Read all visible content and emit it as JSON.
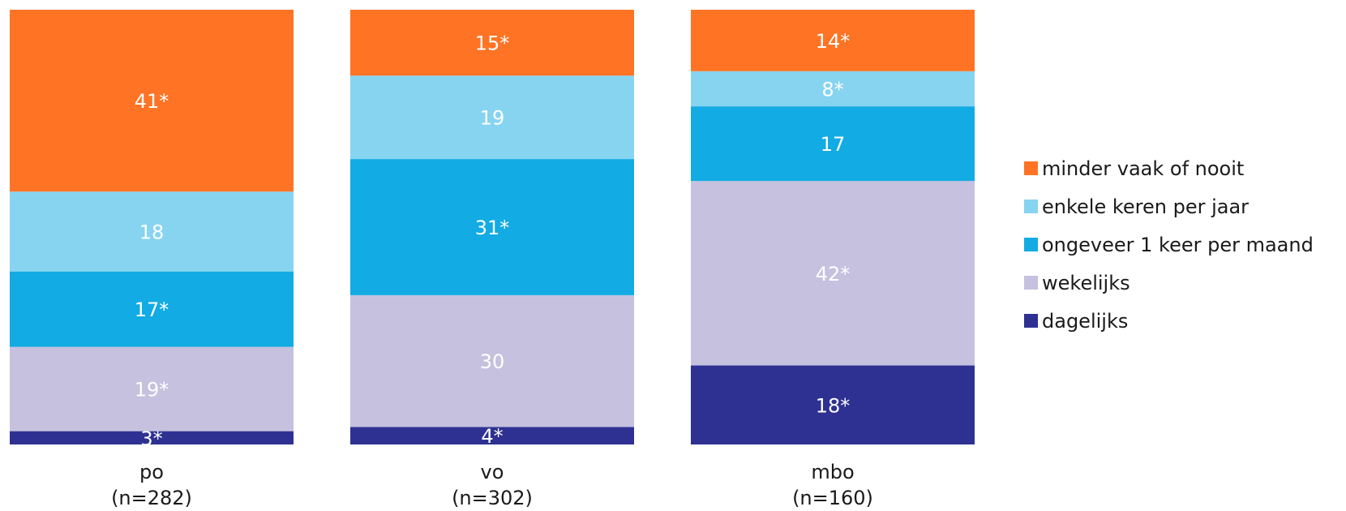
{
  "chart_data": {
    "type": "bar",
    "stacked": true,
    "normalized": true,
    "categories": [
      "po",
      "vo",
      "mbo"
    ],
    "category_notes": [
      "(n=282)",
      "(n=302)",
      "(n=160)"
    ],
    "series": [
      {
        "name": "dagelijks",
        "color": "#2E3192",
        "values": [
          3,
          4,
          18
        ],
        "labels": [
          "3*",
          "4*",
          "18*"
        ]
      },
      {
        "name": "wekelijks",
        "color": "#C5C1DF",
        "values": [
          19,
          30,
          42
        ],
        "labels": [
          "19*",
          "30",
          "42*"
        ]
      },
      {
        "name": "ongeveer 1 keer per maand",
        "color": "#13ABE3",
        "values": [
          17,
          31,
          17
        ],
        "labels": [
          "17*",
          "31*",
          "17"
        ]
      },
      {
        "name": "enkele keren per jaar",
        "color": "#87D4F0",
        "values": [
          18,
          19,
          8
        ],
        "labels": [
          "18",
          "19",
          "8*"
        ]
      },
      {
        "name": "minder vaak of nooit",
        "color": "#FF7324",
        "values": [
          41,
          15,
          14
        ],
        "labels": [
          "41*",
          "15*",
          "14*"
        ]
      }
    ],
    "legend_order": [
      "minder vaak of nooit",
      "enkele keren per jaar",
      "ongeveer 1 keer per maand",
      "wekelijks",
      "dagelijks"
    ],
    "legend_position": "right",
    "grid": false
  }
}
